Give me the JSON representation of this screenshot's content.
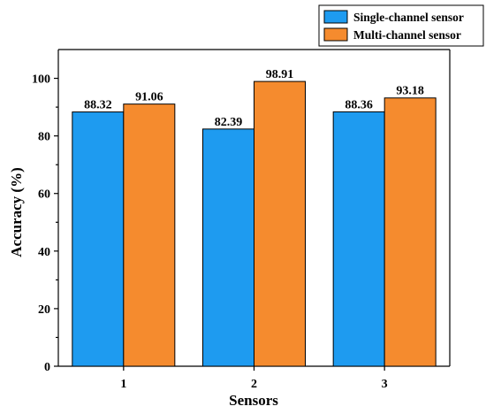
{
  "chart_data": {
    "type": "bar",
    "title": "",
    "xlabel": "Sensors",
    "ylabel": "Accuracy (%)",
    "categories": [
      "1",
      "2",
      "3"
    ],
    "series": [
      {
        "name": "Single-channel sensor",
        "values": [
          88.32,
          82.39,
          88.36
        ],
        "labels": [
          "88.32",
          "82.39",
          "88.36"
        ],
        "color": "#1E9BF0"
      },
      {
        "name": "Multi-channel sensor",
        "values": [
          91.06,
          98.91,
          93.18
        ],
        "labels": [
          "91.06",
          "98.91",
          "93.18"
        ],
        "color": "#F58B2E"
      }
    ],
    "ylim": [
      0,
      110
    ],
    "yticks": [
      0,
      20,
      40,
      60,
      80,
      100
    ],
    "ytick_labels": [
      "0",
      "20",
      "40",
      "60",
      "80",
      "100"
    ],
    "grid": false,
    "legend_position": "top-right"
  }
}
